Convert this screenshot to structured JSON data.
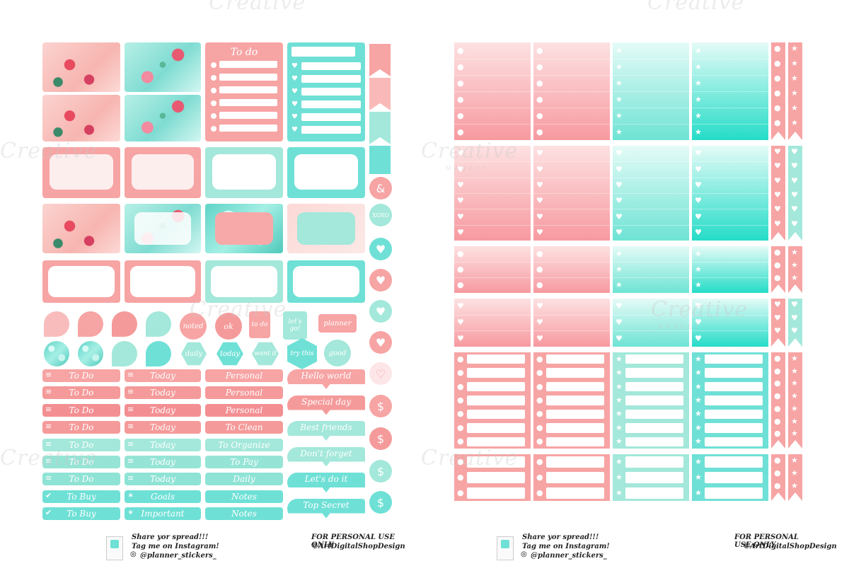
{
  "left_sheet": {
    "todo_heading": "To do",
    "round_stickers": [
      "noted",
      "ok",
      "to do",
      "let's go!",
      "planner"
    ],
    "hex_stickers": [
      "daily",
      "today",
      "want it",
      "try this",
      "good"
    ],
    "circle_stickers": [
      "&",
      "XOXO",
      "heart-icon",
      "heart-icon",
      "heart-icon",
      "heart-icon",
      "heart-outline-icon",
      "$",
      "$",
      "$",
      "$"
    ],
    "label_rows": [
      {
        "col1": "To Do",
        "col2": "Today",
        "col3": "Personal",
        "color": "#f7a4a4",
        "icon": "lines-icon"
      },
      {
        "col1": "To Do",
        "col2": "Today",
        "col3": "Personal",
        "color": "#f59a9a",
        "icon": "lines-icon"
      },
      {
        "col1": "To Do",
        "col2": "Today",
        "col3": "Personal",
        "color": "#f38f93",
        "icon": "lines-icon"
      },
      {
        "col1": "To Do",
        "col2": "Today",
        "col3": "To Clean",
        "color": "#f59a9a",
        "icon": "lines-icon"
      },
      {
        "col1": "To Do",
        "col2": "Today",
        "col3": "To Organize",
        "color": "#a3e8da",
        "icon": "lines-icon"
      },
      {
        "col1": "To Do",
        "col2": "Today",
        "col3": "To Pay",
        "color": "#96e4d6",
        "icon": "lines-icon"
      },
      {
        "col1": "To Do",
        "col2": "Today",
        "col3": "Daily",
        "color": "#8fe3d5",
        "icon": "lines-icon"
      },
      {
        "col1": "To Buy",
        "col2": "Goals",
        "col3": "Notes",
        "color": "#6fe0d6",
        "icon": "check-icon",
        "icon2": "star-icon"
      },
      {
        "col1": "To Buy",
        "col2": "Important",
        "col3": "Notes",
        "color": "#6fe0d6",
        "icon": "check-icon",
        "icon2": "star-icon"
      }
    ],
    "banners": [
      "Hello world",
      "Special day",
      "Best friends",
      "Don't forget",
      "Let's do it",
      "Top Secret"
    ],
    "footer": {
      "share": "Share yor spread!!!",
      "tag": "Tag me on Instagram!",
      "handle": "@planner_stickers_",
      "use": "FOR PERSONAL USE ONLY",
      "copyright": "©ArtDigitalShopDesign"
    }
  },
  "right_sheet": {
    "footer": {
      "share": "Share yor spread!!!",
      "tag": "Tag me on Instagram!",
      "handle": "@planner_stickers_",
      "use": "FOR PERSONAL USE ONLY",
      "copyright": "©ArtDigitalShopDesign"
    }
  },
  "watermark": {
    "text": "Creative",
    "sub": "MARKET"
  },
  "colors": {
    "pink": "#f7a4a4",
    "mint": "#a3e8da",
    "aqua": "#6fe0d6"
  }
}
